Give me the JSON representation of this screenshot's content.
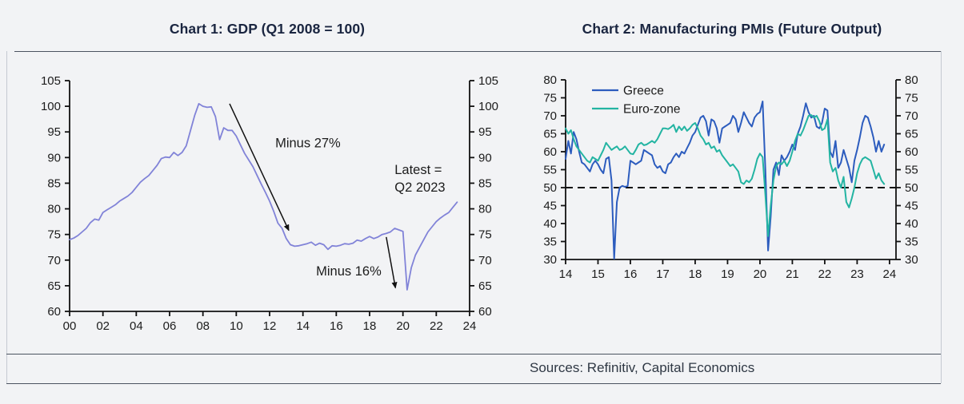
{
  "header": {
    "chart1_title": "Chart 1: GDP (Q1 2008 = 100)",
    "chart2_title": "Chart 2: Manufacturing PMIs (Future Output)"
  },
  "footer": {
    "sources": "Sources: Refinitiv, Capital Economics"
  },
  "colors": {
    "background": "#f2f3f5",
    "title_text": "#1a2540",
    "axis": "#111111",
    "gdp_line": "#8183d8",
    "greece_line": "#2c5cbe",
    "eurozone_line": "#23b4a2",
    "reference_dash": "#111111"
  },
  "chart_data": [
    {
      "type": "line",
      "name": "gdp-chart",
      "title": "Chart 1: GDP (Q1 2008 = 100)",
      "ylim": [
        60,
        105
      ],
      "yticks": [
        60,
        65,
        70,
        75,
        80,
        85,
        90,
        95,
        100,
        105
      ],
      "xticks": [
        {
          "label": "00",
          "x": 2000
        },
        {
          "label": "02",
          "x": 2002
        },
        {
          "label": "04",
          "x": 2004
        },
        {
          "label": "06",
          "x": 2006
        },
        {
          "label": "08",
          "x": 2008
        },
        {
          "label": "10",
          "x": 2010
        },
        {
          "label": "12",
          "x": 2012
        },
        {
          "label": "14",
          "x": 2014
        },
        {
          "label": "16",
          "x": 2016
        },
        {
          "label": "18",
          "x": 2018
        },
        {
          "label": "20",
          "x": 2020
        },
        {
          "label": "22",
          "x": 2022
        },
        {
          "label": "24",
          "x": 2024
        }
      ],
      "x_start": 2000,
      "x_step": 0.25,
      "grid": false,
      "legend_position": "none",
      "series": [
        {
          "name": "GDP",
          "color": "#8183d8",
          "width": 1.8,
          "values": [
            74.0,
            74.3,
            74.8,
            75.5,
            76.2,
            77.3,
            78.0,
            77.8,
            79.3,
            79.8,
            80.3,
            80.8,
            81.5,
            82.0,
            82.5,
            83.2,
            84.2,
            85.2,
            85.9,
            86.5,
            87.5,
            88.5,
            89.8,
            90.1,
            90.0,
            91.0,
            90.4,
            91.0,
            92.3,
            95.2,
            98.2,
            100.5,
            100.0,
            99.8,
            99.9,
            98.0,
            93.5,
            95.8,
            95.3,
            95.3,
            94.2,
            92.5,
            90.8,
            89.5,
            88.2,
            86.5,
            84.8,
            83.2,
            81.5,
            79.5,
            77.2,
            76.2,
            74.2,
            73.0,
            72.7,
            72.8,
            73.0,
            73.2,
            73.5,
            72.9,
            73.3,
            73.0,
            72.1,
            72.8,
            72.7,
            72.9,
            73.2,
            73.1,
            73.3,
            73.9,
            73.7,
            74.2,
            74.6,
            74.2,
            74.5,
            75.0,
            75.2,
            75.5,
            76.2,
            75.9,
            75.6,
            64.2,
            68.5,
            71.0,
            72.5,
            74.0,
            75.5,
            76.5,
            77.5,
            78.2,
            78.8,
            79.3,
            80.3,
            81.3
          ]
        }
      ],
      "annotations": [
        {
          "type": "arrow",
          "from": [
            2009.6,
            100.5
          ],
          "to": [
            2013.15,
            75.8
          ]
        },
        {
          "type": "text",
          "lines": [
            "Minus 27%"
          ],
          "x": 2014.3,
          "y": 92.0,
          "align": "middle"
        },
        {
          "type": "arrow",
          "from": [
            2019.0,
            74.5
          ],
          "to": [
            2019.55,
            64.6
          ]
        },
        {
          "type": "text",
          "lines": [
            "Minus 16%"
          ],
          "x": 2016.75,
          "y": 67.0,
          "align": "middle"
        },
        {
          "type": "text",
          "lines": [
            "Latest =",
            "Q2 2023"
          ],
          "x": 2019.5,
          "y": 86.8,
          "align": "start"
        }
      ]
    },
    {
      "type": "line",
      "name": "pmi-chart",
      "title": "Chart 2: Manufacturing PMIs (Future Output)",
      "ylim": [
        30,
        80
      ],
      "yticks": [
        30,
        35,
        40,
        45,
        50,
        55,
        60,
        65,
        70,
        75,
        80
      ],
      "xticks": [
        {
          "label": "14",
          "x": 2014
        },
        {
          "label": "15",
          "x": 2015
        },
        {
          "label": "16",
          "x": 2016
        },
        {
          "label": "17",
          "x": 2017
        },
        {
          "label": "18",
          "x": 2018
        },
        {
          "label": "19",
          "x": 2019
        },
        {
          "label": "20",
          "x": 2020
        },
        {
          "label": "21",
          "x": 2021
        },
        {
          "label": "22",
          "x": 2022
        },
        {
          "label": "23",
          "x": 2023
        },
        {
          "label": "24",
          "x": 2024
        }
      ],
      "x_start": 2014,
      "x_step": 0.0833333,
      "grid": false,
      "reference_line": 50,
      "legend_position": "top-left",
      "series": [
        {
          "name": "Greece",
          "color": "#2c5cbe",
          "width": 2,
          "values": [
            58,
            63,
            59.5,
            65.5,
            63.5,
            60,
            57,
            56.5,
            55.5,
            54.5,
            56.5,
            57.5,
            56.5,
            55,
            54,
            58,
            58.5,
            52,
            30.2,
            46,
            50,
            50.5,
            50.2,
            50.5,
            57.5,
            57,
            56.5,
            57,
            57.5,
            60.5,
            60,
            59.5,
            59,
            56.5,
            55.5,
            56,
            54.5,
            54,
            56.5,
            57,
            58.5,
            59.5,
            58.5,
            60,
            59.5,
            61,
            62.5,
            64.5,
            65.5,
            67.5,
            69.5,
            70,
            68.5,
            64.5,
            69,
            68.5,
            66.5,
            62.5,
            66.5,
            67,
            67.5,
            68,
            70,
            69,
            65.5,
            68,
            71,
            69.5,
            68,
            67,
            69.5,
            70.5,
            71,
            74,
            55,
            32.5,
            42,
            55,
            57,
            53.5,
            59,
            57.5,
            58.5,
            60,
            62,
            60.5,
            65,
            67,
            70,
            73.5,
            71,
            69.5,
            70,
            67,
            66.5,
            68,
            72,
            71.5,
            60,
            58.5,
            63,
            55.5,
            57,
            60.5,
            58,
            55.5,
            51.5,
            57.5,
            60.5,
            64,
            68,
            70,
            69.5,
            67,
            64,
            60,
            63,
            60,
            62
          ]
        },
        {
          "name": "Euro-zone",
          "color": "#23b4a2",
          "width": 2,
          "values": [
            66.5,
            65,
            66,
            63.5,
            61.5,
            60.5,
            59.5,
            58.5,
            57.5,
            57,
            58.5,
            58,
            57.5,
            59,
            60.5,
            62.5,
            61.5,
            60.5,
            61,
            61.5,
            60.5,
            60.8,
            61.5,
            60.5,
            59.5,
            59.3,
            60.5,
            62,
            62.5,
            61.8,
            62,
            62.5,
            63,
            62.5,
            63.5,
            65,
            66.5,
            66.5,
            66.3,
            66.8,
            67.5,
            65.5,
            67,
            66,
            67,
            65.8,
            66.5,
            67.5,
            68,
            66.5,
            64.5,
            63.5,
            62,
            62.5,
            61,
            61.5,
            60,
            60.5,
            59,
            58,
            57,
            56,
            56.5,
            55.5,
            54.5,
            51.5,
            51,
            52,
            51.5,
            52.5,
            55,
            58,
            59.5,
            58.5,
            48,
            36.5,
            45,
            52,
            56,
            57,
            56.5,
            57.5,
            56,
            57.5,
            60,
            63,
            65,
            64.5,
            66,
            68,
            70,
            70.2,
            69.5,
            70,
            68.5,
            66,
            66.5,
            69,
            57,
            54.5,
            55.5,
            52,
            50,
            53,
            46,
            44.5,
            47,
            50,
            54,
            56.5,
            58,
            58.5,
            58,
            57.5,
            55,
            52.5,
            54,
            52,
            51
          ]
        }
      ]
    }
  ]
}
